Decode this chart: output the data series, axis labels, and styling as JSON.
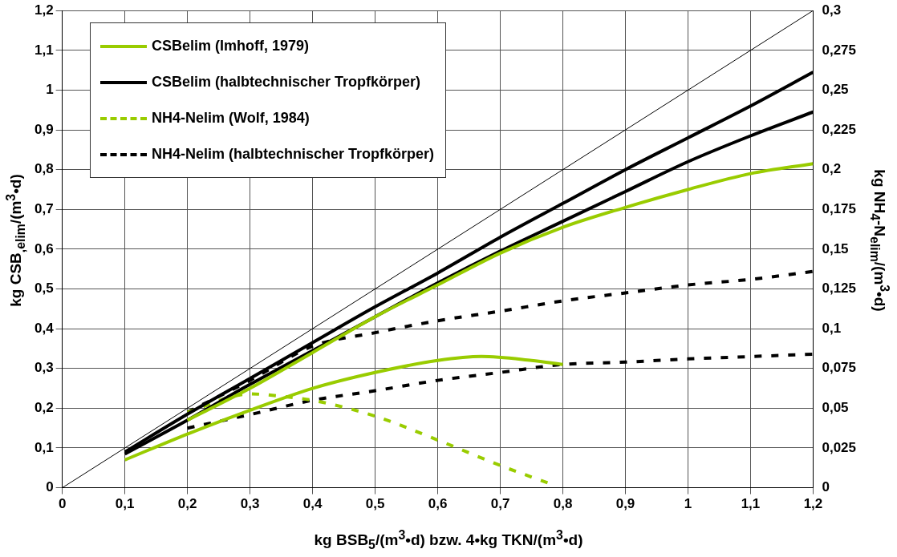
{
  "chart_data": {
    "type": "line",
    "xlabel": "kg BSB$_{5}$/(m$^{3}$•d) bzw. 4•kg TKN/(m$^{3}$•d)",
    "ylabel": "kg CSB$_{,elim}$/(m$^{3}$•d)",
    "y2label": "kg NH$_{4}$-N$_{elim}$/(m$^{3}$•d)",
    "xlim": [
      0,
      1.2
    ],
    "xticks": [
      0,
      {
        "value": 0.1,
        "label": "0,1"
      },
      {
        "value": 0.2,
        "label": "0,2"
      },
      {
        "value": 0.3,
        "label": "0,3"
      },
      {
        "value": 0.4,
        "label": "0,4"
      },
      {
        "value": 0.5,
        "label": "0,5"
      },
      {
        "value": 0.6,
        "label": "0,6"
      },
      {
        "value": 0.7,
        "label": "0,7"
      },
      {
        "value": 0.8,
        "label": "0,8"
      },
      {
        "value": 0.9,
        "label": "0,9"
      },
      1,
      {
        "value": 1.1,
        "label": "1,1"
      },
      {
        "value": 1.2,
        "label": "1,2"
      }
    ],
    "ylim": [
      0,
      1.2
    ],
    "yticks": [
      0,
      {
        "value": 0.1,
        "label": "0,1"
      },
      {
        "value": 0.2,
        "label": "0,2"
      },
      {
        "value": 0.3,
        "label": "0,3"
      },
      {
        "value": 0.4,
        "label": "0,4"
      },
      {
        "value": 0.5,
        "label": "0,5"
      },
      {
        "value": 0.6,
        "label": "0,6"
      },
      {
        "value": 0.7,
        "label": "0,7"
      },
      {
        "value": 0.8,
        "label": "0,8"
      },
      {
        "value": 0.9,
        "label": "0,9"
      },
      1,
      {
        "value": 1.1,
        "label": "1,1"
      },
      {
        "value": 1.2,
        "label": "1,2"
      }
    ],
    "y2lim": [
      0,
      0.3
    ],
    "y2ticks": [
      0,
      {
        "value": 0.025,
        "label": "0,025"
      },
      {
        "value": 0.05,
        "label": "0,05"
      },
      {
        "value": 0.075,
        "label": "0,075"
      },
      {
        "value": 0.1,
        "label": "0,1"
      },
      {
        "value": 0.125,
        "label": "0,125"
      },
      {
        "value": 0.15,
        "label": "0,15"
      },
      {
        "value": 0.175,
        "label": "0,175"
      },
      {
        "value": 0.2,
        "label": "0,2"
      },
      {
        "value": 0.225,
        "label": "0,225"
      },
      {
        "value": 0.25,
        "label": "0,25"
      },
      {
        "value": 0.275,
        "label": "0,275"
      },
      {
        "value": 0.3,
        "label": "0,3"
      }
    ],
    "grid": true,
    "legend": "top left",
    "marker": "none",
    "series": [
      {
        "name": "CSBelim (Imhoff, 1979)",
        "color": "#99cc00",
        "line_style": "solid",
        "x": [
          0.2,
          0.3,
          0.4,
          0.5,
          0.6,
          0.7,
          0.8,
          0.9,
          1,
          1.1,
          1.2
        ],
        "values": [
          0.17,
          0.25,
          0.34,
          0.43,
          0.51,
          0.59,
          0.655,
          0.705,
          0.75,
          0.79,
          0.815
        ]
      },
      {
        "color": "#99cc00",
        "line_style": "solid",
        "x": [
          0.1,
          0.2,
          0.3,
          0.4,
          0.5,
          0.6,
          0.67,
          0.75,
          0.8
        ],
        "values": [
          0.07,
          0.135,
          0.195,
          0.25,
          0.29,
          0.32,
          0.33,
          0.32,
          0.31
        ]
      },
      {
        "name": "CSBelim (halbtechnischer Tropfkörper)",
        "color": "#000000",
        "line_style": "solid",
        "x": [
          0.1,
          0.2,
          0.3,
          0.4,
          0.5,
          0.6,
          0.7,
          0.8,
          0.9,
          1,
          1.1,
          1.2
        ],
        "values": [
          0.09,
          0.185,
          0.275,
          0.365,
          0.455,
          0.54,
          0.63,
          0.715,
          0.8,
          0.88,
          0.96,
          1.045
        ]
      },
      {
        "color": "#000000",
        "line_style": "solid",
        "x": [
          0.1,
          0.2,
          0.3,
          0.4,
          0.5,
          0.6,
          0.7,
          0.8,
          0.9,
          1,
          1.1,
          1.2
        ],
        "values": [
          0.085,
          0.17,
          0.26,
          0.345,
          0.43,
          0.515,
          0.595,
          0.67,
          0.745,
          0.82,
          0.885,
          0.945
        ]
      },
      {
        "name": "NH4-Nelim (Wolf, 1984)",
        "color": "#99cc00",
        "line_style": "dashed",
        "axis": "y2",
        "x": [
          0.2,
          0.3,
          0.35,
          0.4,
          0.5,
          0.6,
          0.7,
          0.78
        ],
        "values": [
          0.0475,
          0.059,
          0.0575,
          0.055,
          0.045,
          0.03,
          0.014,
          0.0025
        ]
      },
      {
        "name": "NH4-Nelim (halbtechnischer Tropfkörper)",
        "color": "#000000",
        "line_style": "dashed",
        "axis": "y2",
        "x": [
          0.2,
          0.3,
          0.4,
          0.5,
          0.6,
          0.7,
          0.8,
          0.9,
          1,
          1.1,
          1.2
        ],
        "values": [
          0.0475,
          0.0675,
          0.089,
          0.0975,
          0.105,
          0.111,
          0.1175,
          0.1225,
          0.1275,
          0.131,
          0.136
        ]
      },
      {
        "color": "#000000",
        "line_style": "dashed",
        "axis": "y2",
        "x": [
          0.2,
          0.3,
          0.4,
          0.5,
          0.6,
          0.7,
          0.8,
          0.9,
          1,
          1.1,
          1.2
        ],
        "values": [
          0.0375,
          0.046,
          0.055,
          0.061,
          0.0675,
          0.0725,
          0.0775,
          0.079,
          0.081,
          0.0825,
          0.084
        ]
      },
      {
        "color": "#000000",
        "line_style": "solid",
        "x": [
          0,
          1.2
        ],
        "values": [
          0,
          1.2
        ]
      }
    ]
  }
}
